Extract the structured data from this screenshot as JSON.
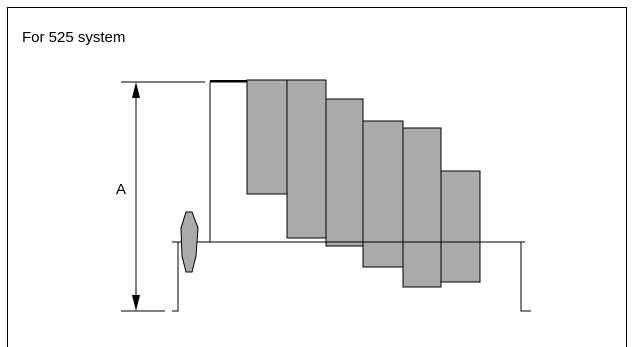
{
  "heading": "For 525 system",
  "dimension_label": "A",
  "colors": {
    "stroke": "#000000",
    "fill": "#aaaaaa",
    "background": "#ffffff"
  }
}
